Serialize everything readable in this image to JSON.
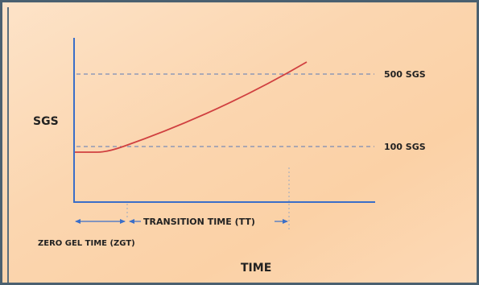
{
  "chart_data": {
    "type": "line",
    "ylabel": "SGS",
    "xlabel": "TIME",
    "reference_lines": [
      {
        "value": 500,
        "label": "500 SGS"
      },
      {
        "value": 100,
        "label": "100 SGS"
      }
    ],
    "intervals": [
      {
        "label": "TRANSITION TIME (TT)"
      },
      {
        "label": "ZERO GEL TIME (ZGT)"
      }
    ],
    "colors": {
      "curve": "#d04040",
      "axis": "#3a6ec8",
      "reference_line": "#5a7ab8",
      "arrow": "#3a6ec8"
    }
  }
}
